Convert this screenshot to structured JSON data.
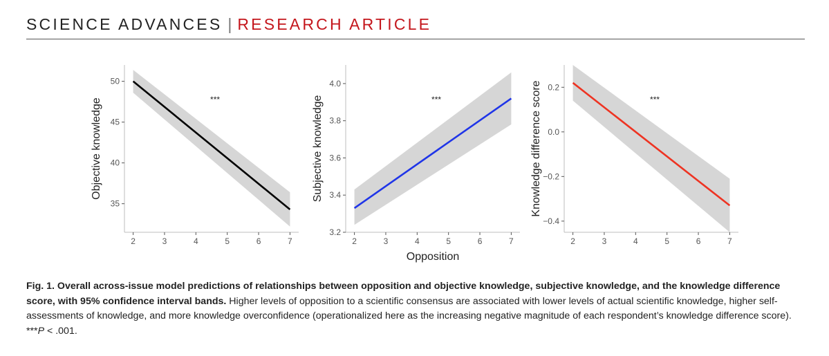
{
  "header": {
    "journal": "SCIENCE ADVANCES",
    "separator": "|",
    "article_type": "RESEARCH ARTICLE"
  },
  "figure": {
    "shared_xlabel": "Opposition"
  },
  "caption": {
    "label": "Fig. 1. Overall across-issue model predictions of relationships between opposition and objective knowledge, subjective knowledge, and the knowledge difference score, with 95% confidence interval bands.",
    "body": " Higher levels of opposition to a scientific consensus are associated with lower levels of actual scientific knowledge, higher self-assessments of knowledge, and more knowledge overconfidence (operationalized here as the increasing negative magnitude of each respondent’s knowledge difference score). ***",
    "p_symbol": "P",
    "p_text": " < .001."
  },
  "chart_data": [
    {
      "type": "line",
      "ylabel": "Objective knowledge",
      "xlabel": "",
      "xlim": [
        2,
        7
      ],
      "ylim": [
        31.5,
        52
      ],
      "x_ticks": [
        "2",
        "3",
        "4",
        "5",
        "6",
        "7"
      ],
      "y_ticks": [
        35,
        40,
        45,
        50
      ],
      "y_tick_labels": [
        "35",
        "40",
        "45",
        "50"
      ],
      "annotation": "***",
      "line_color": "#000000",
      "series": [
        {
          "x": [
            2,
            7
          ],
          "y": [
            50.0,
            34.3
          ],
          "ci_lower": [
            48.6,
            32.2
          ],
          "ci_upper": [
            51.4,
            36.4
          ]
        }
      ]
    },
    {
      "type": "line",
      "ylabel": "Subjective knowledge",
      "xlabel": "Opposition",
      "xlim": [
        2,
        7
      ],
      "ylim": [
        3.2,
        4.1
      ],
      "x_ticks": [
        "2",
        "3",
        "4",
        "5",
        "6",
        "7"
      ],
      "y_ticks": [
        3.2,
        3.4,
        3.6,
        3.8,
        4.0
      ],
      "y_tick_labels": [
        "3.2",
        "3.4",
        "3.6",
        "3.8",
        "4.0"
      ],
      "annotation": "***",
      "line_color": "#1f35e8",
      "series": [
        {
          "x": [
            2,
            7
          ],
          "y": [
            3.33,
            3.92
          ],
          "ci_lower": [
            3.24,
            3.78
          ],
          "ci_upper": [
            3.43,
            4.06
          ]
        }
      ]
    },
    {
      "type": "line",
      "ylabel": "Knowledge difference score",
      "xlabel": "",
      "xlim": [
        2,
        7
      ],
      "ylim": [
        -0.45,
        0.3
      ],
      "x_ticks": [
        "2",
        "3",
        "4",
        "5",
        "6",
        "7"
      ],
      "y_ticks": [
        -0.4,
        -0.2,
        0.0,
        0.2
      ],
      "y_tick_labels": [
        "−0.4",
        "−0.2",
        "0.0",
        "0.2"
      ],
      "annotation": "***",
      "line_color": "#ee3322",
      "series": [
        {
          "x": [
            2,
            7
          ],
          "y": [
            0.22,
            -0.33
          ],
          "ci_lower": [
            0.14,
            -0.45
          ],
          "ci_upper": [
            0.3,
            -0.21
          ]
        }
      ]
    }
  ]
}
